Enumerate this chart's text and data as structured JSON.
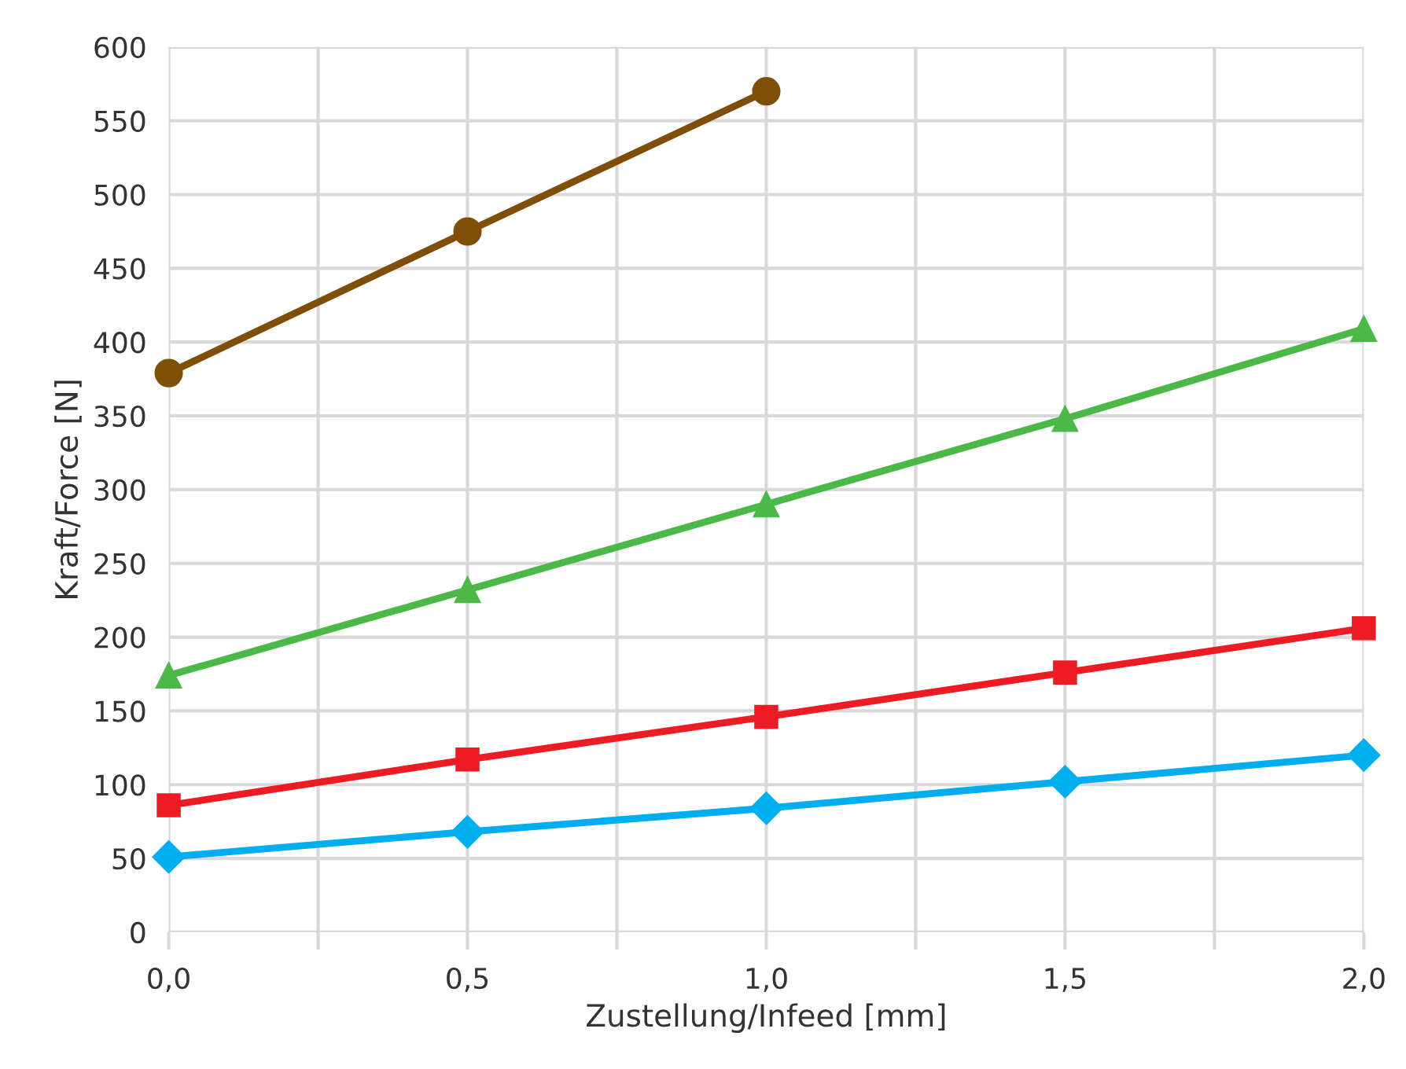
{
  "chart_data": {
    "type": "line",
    "xlabel": "Zustellung/Infeed [mm]",
    "ylabel": "Kraft/Force [N]",
    "x": [
      0,
      0.5,
      1.0,
      1.5,
      2.0
    ],
    "series": [
      {
        "color": "#00adef",
        "marker": "diamond",
        "values": [
          51,
          68,
          84,
          102,
          120
        ]
      },
      {
        "color": "#ed1c24",
        "marker": "square",
        "values": [
          86,
          117,
          146,
          176,
          206
        ]
      },
      {
        "color": "#4cb848",
        "marker": "triangle",
        "values": [
          174,
          232,
          290,
          348,
          409
        ]
      },
      {
        "color": "#7f4f0a",
        "marker": "circle",
        "values": [
          379,
          475,
          570,
          null,
          null
        ]
      }
    ],
    "xlim": [
      0,
      2.0
    ],
    "ylim": [
      0,
      600
    ],
    "xticks": [
      {
        "value": 0,
        "label": "0,0"
      },
      {
        "value": 0.25,
        "label": null
      },
      {
        "value": 0.5,
        "label": "0,5"
      },
      {
        "value": 0.75,
        "label": null
      },
      {
        "value": 1.0,
        "label": "1,0"
      },
      {
        "value": 1.25,
        "label": null
      },
      {
        "value": 1.5,
        "label": "1,5"
      },
      {
        "value": 1.75,
        "label": null
      },
      {
        "value": 2.0,
        "label": "2,0"
      }
    ],
    "yticks": [
      0,
      50,
      100,
      150,
      200,
      250,
      300,
      350,
      400,
      450,
      500,
      550,
      600
    ],
    "grid": true,
    "line_style": "solid"
  }
}
